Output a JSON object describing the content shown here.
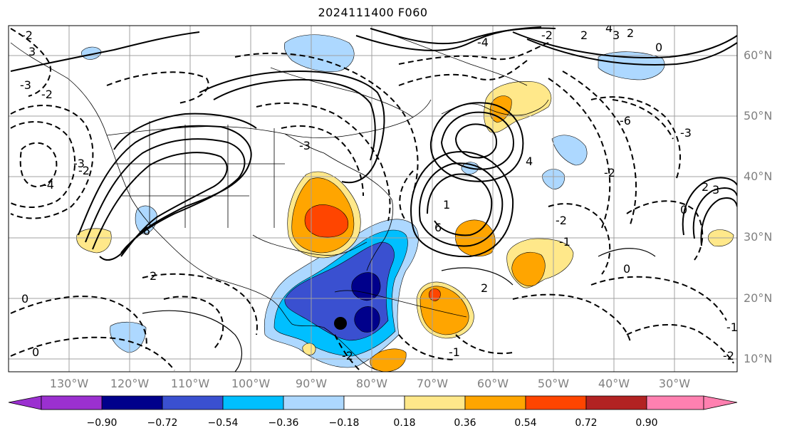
{
  "title": "2024111400 F060",
  "lat_labels": [
    "60°N",
    "50°N",
    "40°N",
    "30°N",
    "20°N",
    "10°N"
  ],
  "lon_labels": [
    "130°W",
    "120°W",
    "110°W",
    "100°W",
    "90°W",
    "80°W",
    "70°W",
    "60°W",
    "50°W",
    "40°W",
    "30°W"
  ],
  "colorbar": {
    "ticks": [
      "−0.90",
      "−0.72",
      "−0.54",
      "−0.36",
      "−0.18",
      "0.18",
      "0.36",
      "0.54",
      "0.72",
      "0.90"
    ],
    "colors": [
      "#9b30d0",
      "#00008b",
      "#3a50d0",
      "#00bfff",
      "#add8ff",
      "#ffffff",
      "#ffe88a",
      "#ffa500",
      "#ff4500",
      "#b22222",
      "#ff80b0"
    ]
  },
  "contour_labels": [
    "-2",
    "3",
    "-3",
    "-2",
    "-4",
    "-2",
    "-3",
    "0",
    "-3",
    "-4",
    "-2",
    "2",
    "0",
    "2",
    "3",
    "4",
    "-6",
    "6",
    "-6",
    "4",
    "2",
    "-2",
    "-1",
    "-3",
    "0",
    "2",
    "0",
    "-1",
    "-2",
    "-2",
    "-1",
    "1",
    "2",
    "3",
    "0",
    "-2"
  ],
  "marker": "black-dot"
}
